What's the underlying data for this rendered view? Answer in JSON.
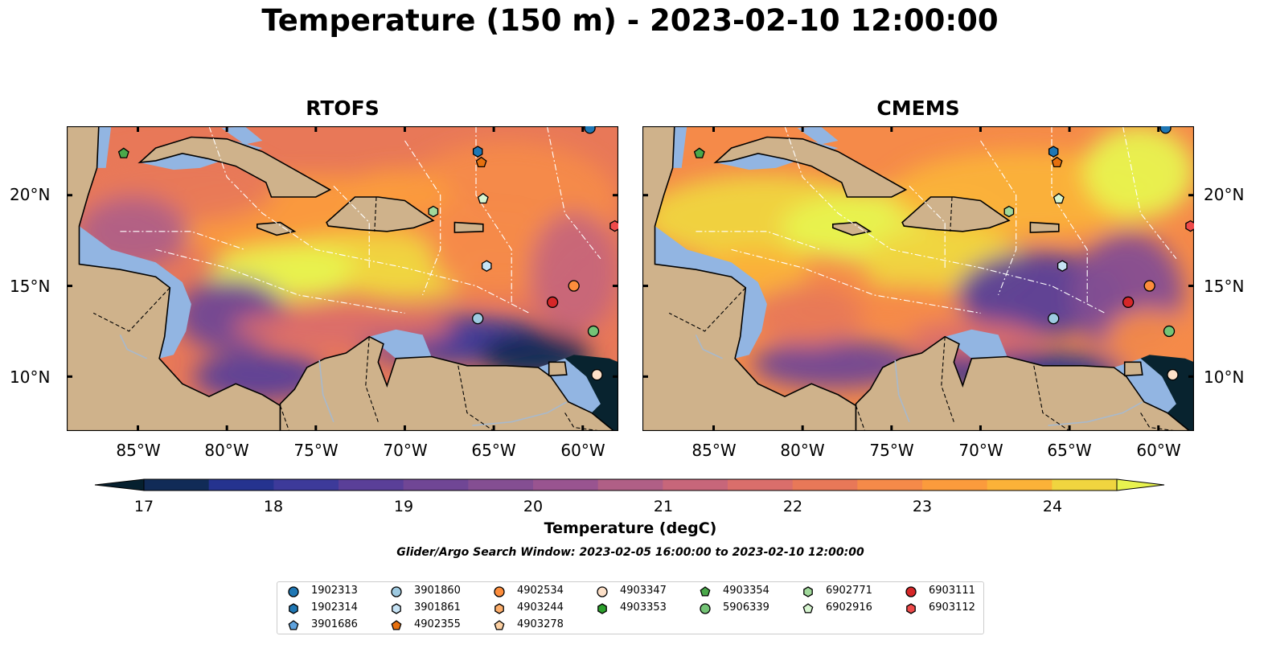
{
  "title": "Temperature (150 m) - 2023-02-10 12:00:00",
  "panels": [
    {
      "title": "RTOFS"
    },
    {
      "title": "CMEMS"
    }
  ],
  "axes": {
    "lon_ticks": [
      "85°W",
      "80°W",
      "75°W",
      "70°W",
      "65°W",
      "60°W"
    ],
    "lat_ticks": [
      "20°N",
      "15°N",
      "10°N"
    ],
    "lon_range": [
      -89,
      -58
    ],
    "lat_range": [
      7,
      23.8
    ]
  },
  "colorbar": {
    "label": "Temperature (degC)",
    "ticks": [
      "17",
      "18",
      "19",
      "20",
      "21",
      "22",
      "23",
      "24"
    ],
    "range": [
      17,
      24.5
    ],
    "levels": 15,
    "extend": "both",
    "colormap": "thermal",
    "colors": [
      "#06202f",
      "#112b57",
      "#25338f",
      "#3d3a9a",
      "#5a3f98",
      "#704695",
      "#844e92",
      "#995490",
      "#b05f86",
      "#c7667a",
      "#da6e6b",
      "#e87858",
      "#f58a49",
      "#fb9b3c",
      "#fbb238",
      "#f0d53f",
      "#e8f34f"
    ]
  },
  "search_window": "Glider/Argo Search Window: 2023-02-05 16:00:00 to 2023-02-10 12:00:00",
  "map_colors": {
    "land": "#cfb28b",
    "shelf": "#92b5e2",
    "deep": "#08232f",
    "coast": "#000000"
  },
  "legend": [
    {
      "id": "1902313",
      "marker": "circle",
      "color": "#1f77b4"
    },
    {
      "id": "1902314",
      "marker": "hexagon",
      "color": "#1f77b4"
    },
    {
      "id": "3901686",
      "marker": "pentagon",
      "color": "#5fa2dd"
    },
    {
      "id": "3901860",
      "marker": "circle",
      "color": "#9ecae1"
    },
    {
      "id": "3901861",
      "marker": "hexagon",
      "color": "#c6e3f5"
    },
    {
      "id": "4902355",
      "marker": "pentagon",
      "color": "#e6700e"
    },
    {
      "id": "4902534",
      "marker": "circle",
      "color": "#fd8d3c"
    },
    {
      "id": "4903244",
      "marker": "hexagon",
      "color": "#fdae6b"
    },
    {
      "id": "4903278",
      "marker": "pentagon",
      "color": "#fdd0a2"
    },
    {
      "id": "4903347",
      "marker": "circle",
      "color": "#fde0c8"
    },
    {
      "id": "4903353",
      "marker": "hexagon",
      "color": "#2ca02c"
    },
    {
      "id": "4903354",
      "marker": "pentagon",
      "color": "#4aa84a"
    },
    {
      "id": "5906339",
      "marker": "circle",
      "color": "#74c476"
    },
    {
      "id": "6902771",
      "marker": "hexagon",
      "color": "#a1d99b"
    },
    {
      "id": "6902916",
      "marker": "pentagon",
      "color": "#d7f5d0"
    },
    {
      "id": "6903111",
      "marker": "circle",
      "color": "#d62728"
    },
    {
      "id": "6903112",
      "marker": "hexagon",
      "color": "#ef4a4a"
    }
  ],
  "floats": [
    {
      "id": "1902313",
      "lon": -59.6,
      "lat": 23.7
    },
    {
      "id": "4903354",
      "lon": -85.8,
      "lat": 22.3
    },
    {
      "id": "1902314",
      "lon": -65.9,
      "lat": 22.4
    },
    {
      "id": "4902355",
      "lon": -65.7,
      "lat": 21.8
    },
    {
      "id": "6902916",
      "lon": -65.6,
      "lat": 19.8
    },
    {
      "id": "6902771",
      "lon": -68.4,
      "lat": 19.1
    },
    {
      "id": "6903112",
      "lon": -58.2,
      "lat": 18.3
    },
    {
      "id": "3901861",
      "lon": -65.4,
      "lat": 16.1
    },
    {
      "id": "4902534",
      "lon": -60.5,
      "lat": 15.0
    },
    {
      "id": "6903111",
      "lon": -61.7,
      "lat": 14.1
    },
    {
      "id": "3901860",
      "lon": -65.9,
      "lat": 13.2
    },
    {
      "id": "5906339",
      "lon": -59.4,
      "lat": 12.5
    },
    {
      "id": "4903347",
      "lon": -59.2,
      "lat": 10.1
    }
  ]
}
